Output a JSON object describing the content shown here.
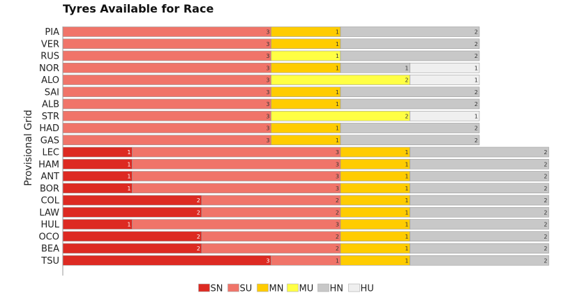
{
  "chart_data": {
    "type": "bar",
    "orientation": "horizontal",
    "stacked": true,
    "title": "Tyres Available for Race",
    "ylabel": "Provisional Grid",
    "xlabel": "",
    "categories": [
      "PIA",
      "VER",
      "RUS",
      "NOR",
      "ALO",
      "SAI",
      "ALB",
      "STR",
      "HAD",
      "GAS",
      "LEC",
      "HAM",
      "ANT",
      "BOR",
      "COL",
      "LAW",
      "HUL",
      "OCO",
      "BEA",
      "TSU"
    ],
    "series": [
      {
        "name": "SN",
        "color": "#dd2a22",
        "values": [
          0,
          0,
          0,
          0,
          0,
          0,
          0,
          0,
          0,
          0,
          1,
          1,
          1,
          1,
          2,
          2,
          1,
          2,
          2,
          3
        ]
      },
      {
        "name": "SU",
        "color": "#f07469",
        "values": [
          3,
          3,
          3,
          3,
          3,
          3,
          3,
          3,
          3,
          3,
          3,
          3,
          3,
          3,
          2,
          2,
          3,
          2,
          2,
          1
        ]
      },
      {
        "name": "MN",
        "color": "#ffcc00",
        "values": [
          1,
          1,
          0,
          1,
          0,
          1,
          1,
          0,
          1,
          1,
          1,
          1,
          1,
          1,
          1,
          1,
          1,
          1,
          1,
          1
        ]
      },
      {
        "name": "MU",
        "color": "#ffff44",
        "values": [
          0,
          0,
          1,
          0,
          2,
          0,
          0,
          2,
          0,
          0,
          0,
          0,
          0,
          0,
          0,
          0,
          0,
          0,
          0,
          0
        ]
      },
      {
        "name": "HN",
        "color": "#c8c8c8",
        "values": [
          2,
          2,
          2,
          1,
          0,
          2,
          2,
          0,
          2,
          2,
          2,
          2,
          2,
          2,
          2,
          2,
          2,
          2,
          2,
          2
        ]
      },
      {
        "name": "HU",
        "color": "#efefef",
        "values": [
          0,
          0,
          0,
          1,
          1,
          0,
          0,
          1,
          0,
          0,
          0,
          0,
          0,
          0,
          0,
          0,
          0,
          0,
          0,
          0
        ]
      }
    ],
    "legend_position": "bottom-center",
    "grid": false
  }
}
